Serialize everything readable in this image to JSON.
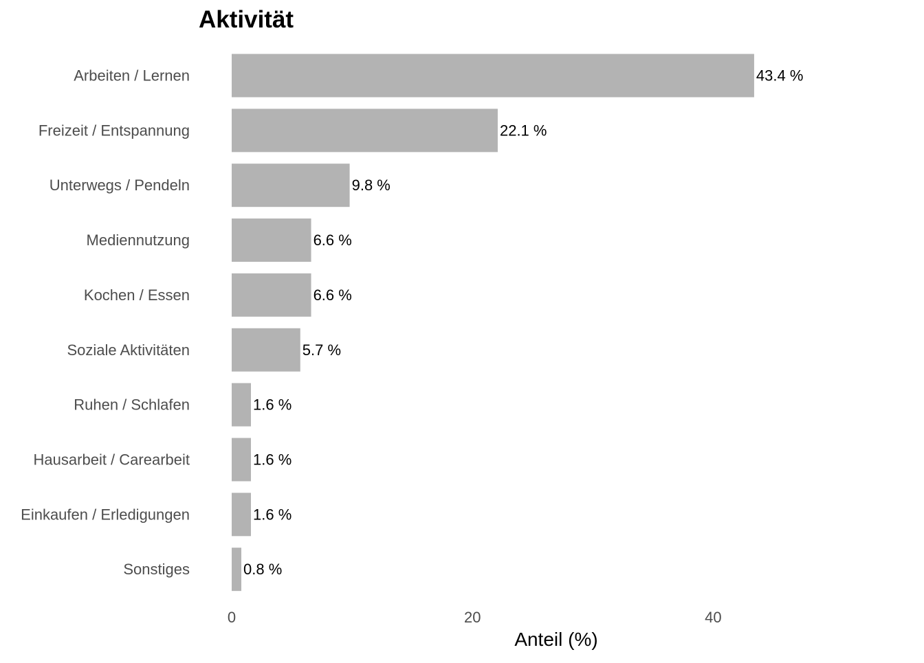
{
  "chart_data": {
    "type": "bar",
    "orientation": "horizontal",
    "title": "Aktivität",
    "xlabel": "Anteil (%)",
    "ylabel": "",
    "categories": [
      "Arbeiten / Lernen",
      "Freizeit / Entspannung",
      "Unterwegs / Pendeln",
      "Mediennutzung",
      "Kochen / Essen",
      "Soziale Aktivitäten",
      "Ruhen / Schlafen",
      "Hausarbeit / Carearbeit",
      "Einkaufen / Erledigungen",
      "Sonstiges"
    ],
    "values": [
      43.4,
      22.1,
      9.8,
      6.6,
      6.6,
      5.7,
      1.6,
      1.6,
      1.6,
      0.8
    ],
    "value_labels": [
      "43.4 %",
      "22.1 %",
      "9.8 %",
      "6.6 %",
      "6.6 %",
      "5.7 %",
      "1.6 %",
      "1.6 %",
      "1.6 %",
      "0.8 %"
    ],
    "x_ticks": [
      0,
      20,
      40
    ],
    "x_tick_labels": [
      "0",
      "20",
      "40"
    ],
    "xlim": [
      0,
      43.4
    ],
    "grid": false,
    "legend": "none",
    "bar_color": "#b3b3b3"
  }
}
